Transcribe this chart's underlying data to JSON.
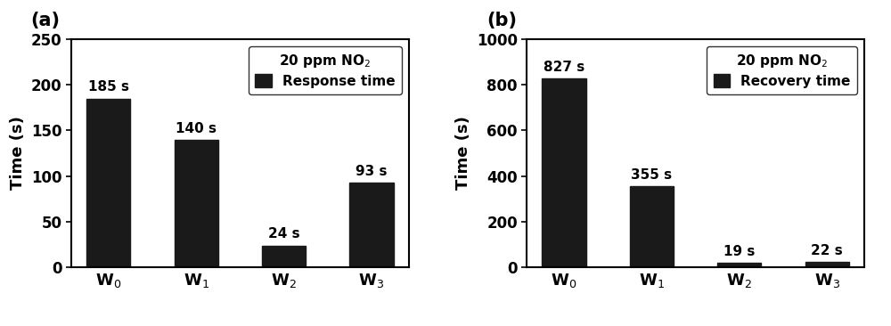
{
  "panel_a": {
    "categories": [
      "W$_0$",
      "W$_1$",
      "W$_2$",
      "W$_3$"
    ],
    "values": [
      185,
      140,
      24,
      93
    ],
    "labels": [
      "185 s",
      "140 s",
      "24 s",
      "93 s"
    ],
    "bar_color": "#1a1a1a",
    "ylabel": "Time (s)",
    "ylim": [
      0,
      250
    ],
    "yticks": [
      0,
      50,
      100,
      150,
      200,
      250
    ],
    "legend_label1": "Response time",
    "legend_label2": "20 ppm NO$_2$",
    "panel_label": "(a)"
  },
  "panel_b": {
    "categories": [
      "W$_0$",
      "W$_1$",
      "W$_2$",
      "W$_3$"
    ],
    "values": [
      827,
      355,
      19,
      22
    ],
    "labels": [
      "827 s",
      "355 s",
      "19 s",
      "22 s"
    ],
    "bar_color": "#1a1a1a",
    "ylabel": "Time (s)",
    "ylim": [
      0,
      1000
    ],
    "yticks": [
      0,
      200,
      400,
      600,
      800,
      1000
    ],
    "legend_label1": "Recovery time",
    "legend_label2": "20 ppm NO$_2$",
    "panel_label": "(b)"
  },
  "background_color": "#ffffff",
  "bar_width": 0.5,
  "font_size_ticks": 12,
  "font_size_ylabel": 13,
  "font_size_annotations": 11,
  "font_size_panel": 15,
  "font_size_legend": 11,
  "figsize": [
    10.0,
    3.66
  ],
  "dpi": 100
}
